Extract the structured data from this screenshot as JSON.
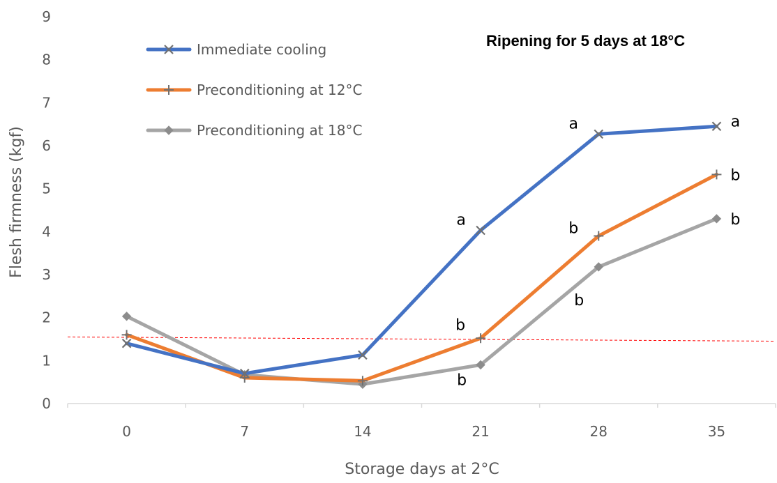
{
  "chart_data": {
    "type": "line",
    "title": "Ripening for 5 days at 18°C",
    "xlabel": "Storage days at 2°C",
    "ylabel": "Flesh firmness (kgf)",
    "categories": [
      "0",
      "7",
      "14",
      "21",
      "28",
      "35"
    ],
    "ylim": [
      0,
      9
    ],
    "yticks": [
      "0",
      "1",
      "2",
      "3",
      "4",
      "5",
      "6",
      "7",
      "8",
      "9"
    ],
    "grid": false,
    "legend_position": "top-left",
    "reference_line": {
      "y": 1.5,
      "style": "dashed",
      "color": "#ff0000"
    },
    "series": [
      {
        "name": "Immediate cooling",
        "color": "#4472c4",
        "marker": "x",
        "values": [
          1.4,
          0.7,
          1.13,
          4.03,
          6.27,
          6.45
        ],
        "labels": [
          "",
          "",
          "",
          "a",
          "a",
          "a"
        ]
      },
      {
        "name": "Preconditioning at 12°C",
        "color": "#ed7d31",
        "marker": "plus",
        "values": [
          1.6,
          0.6,
          0.53,
          1.52,
          3.9,
          5.33
        ],
        "labels": [
          "",
          "",
          "",
          "b",
          "b",
          "b"
        ]
      },
      {
        "name": "Preconditioning at 18°C",
        "color": "#a5a5a5",
        "marker": "diamond",
        "values": [
          2.03,
          0.67,
          0.45,
          0.9,
          3.18,
          4.3
        ],
        "labels": [
          "",
          "",
          "",
          "b",
          "b",
          "b"
        ]
      }
    ]
  }
}
